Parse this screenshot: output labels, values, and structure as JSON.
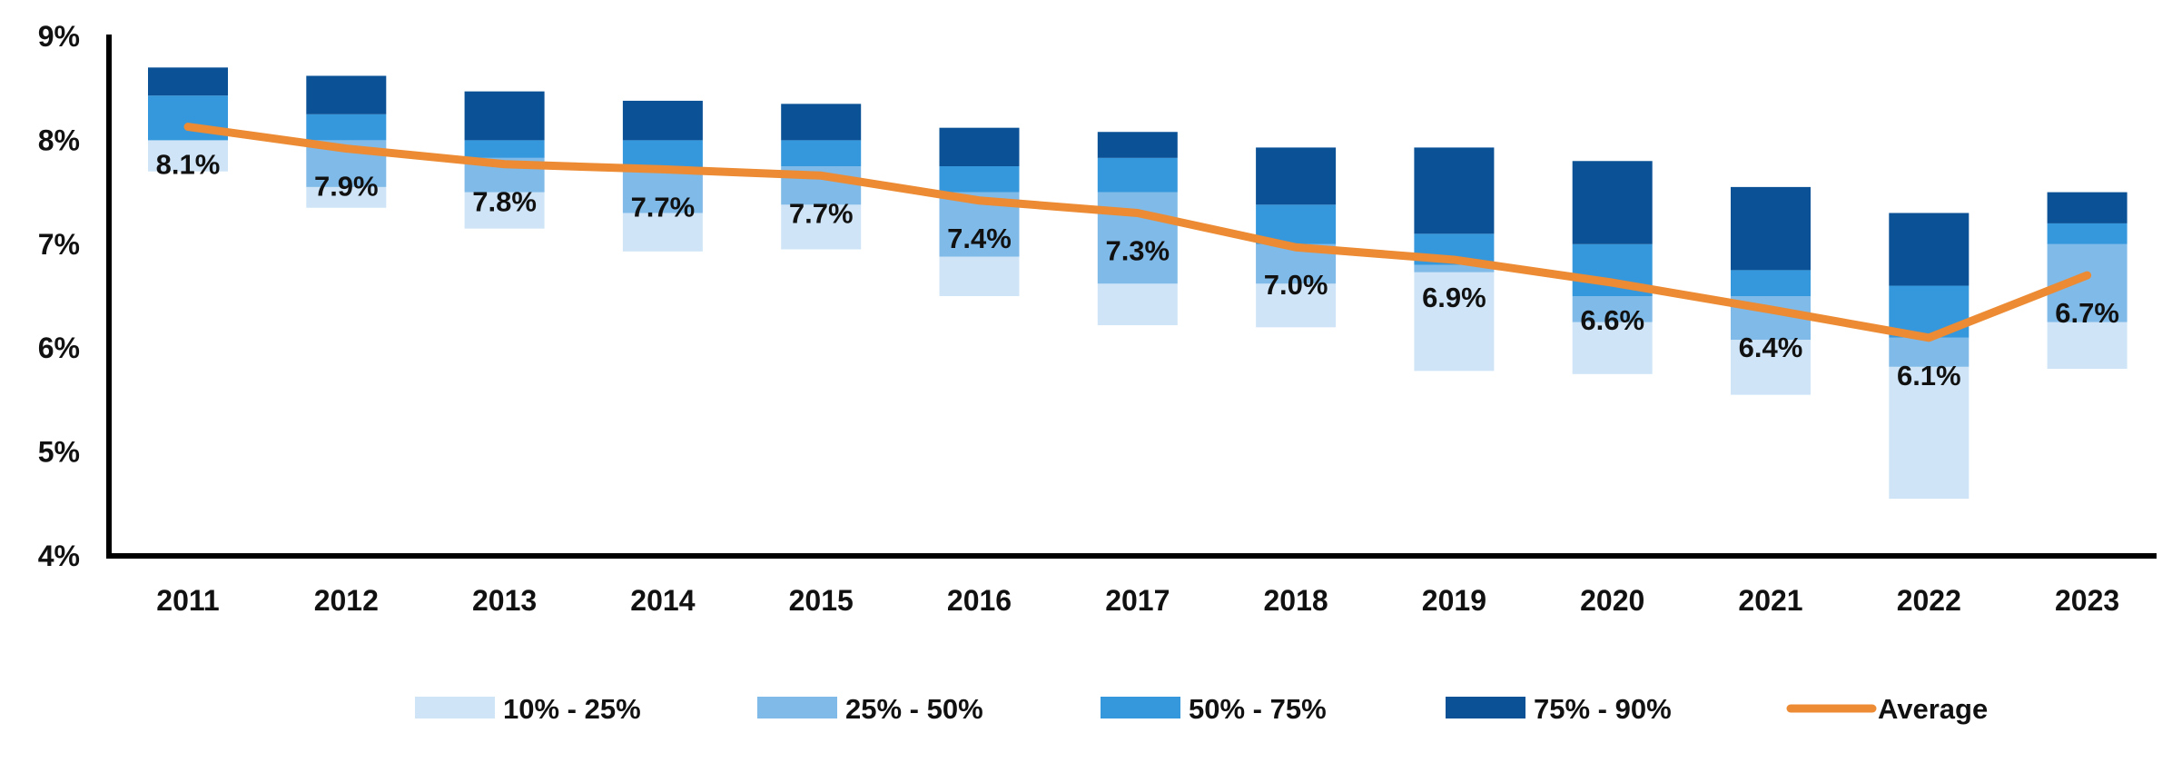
{
  "chart_data": {
    "type": "bar",
    "subtype": "floating-stacked-bar-with-line",
    "title": "",
    "xlabel": "",
    "ylabel": "",
    "ylim": [
      4,
      9
    ],
    "yticks": [
      "4%",
      "5%",
      "6%",
      "7%",
      "8%",
      "9%"
    ],
    "grid": false,
    "legend_position": "bottom",
    "categories": [
      "2011",
      "2012",
      "2013",
      "2014",
      "2015",
      "2016",
      "2017",
      "2018",
      "2019",
      "2020",
      "2021",
      "2022",
      "2023"
    ],
    "percentiles": {
      "p10": [
        7.7,
        7.35,
        7.15,
        6.93,
        6.95,
        6.5,
        6.22,
        6.2,
        5.78,
        5.75,
        5.55,
        4.55,
        5.8
      ],
      "p25": [
        8.0,
        7.55,
        7.5,
        7.3,
        7.38,
        6.88,
        6.62,
        6.62,
        6.73,
        6.25,
        6.08,
        5.82,
        6.25
      ],
      "p50": [
        8.0,
        8.0,
        7.83,
        7.7,
        7.75,
        7.5,
        7.5,
        7.0,
        6.8,
        6.5,
        6.5,
        6.1,
        7.0
      ],
      "p75": [
        8.43,
        8.25,
        8.0,
        8.0,
        8.0,
        7.75,
        7.83,
        7.38,
        7.1,
        7.0,
        6.75,
        6.6,
        7.2
      ],
      "p90": [
        8.7,
        8.62,
        8.47,
        8.38,
        8.35,
        8.12,
        8.08,
        7.93,
        7.93,
        7.8,
        7.55,
        7.3,
        7.5
      ]
    },
    "series": [
      {
        "name": "10% - 25%",
        "color": "#cfe5f7",
        "from": "p10",
        "to": "p25"
      },
      {
        "name": "25% - 50%",
        "color": "#7fbae8",
        "from": "p25",
        "to": "p50"
      },
      {
        "name": "50% - 75%",
        "color": "#3597dc",
        "from": "p50",
        "to": "p75"
      },
      {
        "name": "75% - 90%",
        "color": "#0a5196",
        "from": "p75",
        "to": "p90"
      }
    ],
    "average": {
      "name": "Average",
      "color": "#ec8b33",
      "values": [
        8.13,
        7.92,
        7.77,
        7.72,
        7.66,
        7.42,
        7.3,
        6.97,
        6.85,
        6.63,
        6.37,
        6.1,
        6.7
      ],
      "labels": [
        "8.1%",
        "7.9%",
        "7.8%",
        "7.7%",
        "7.7%",
        "7.4%",
        "7.3%",
        "7.0%",
        "6.9%",
        "6.6%",
        "6.4%",
        "6.1%",
        "6.7%"
      ]
    }
  }
}
